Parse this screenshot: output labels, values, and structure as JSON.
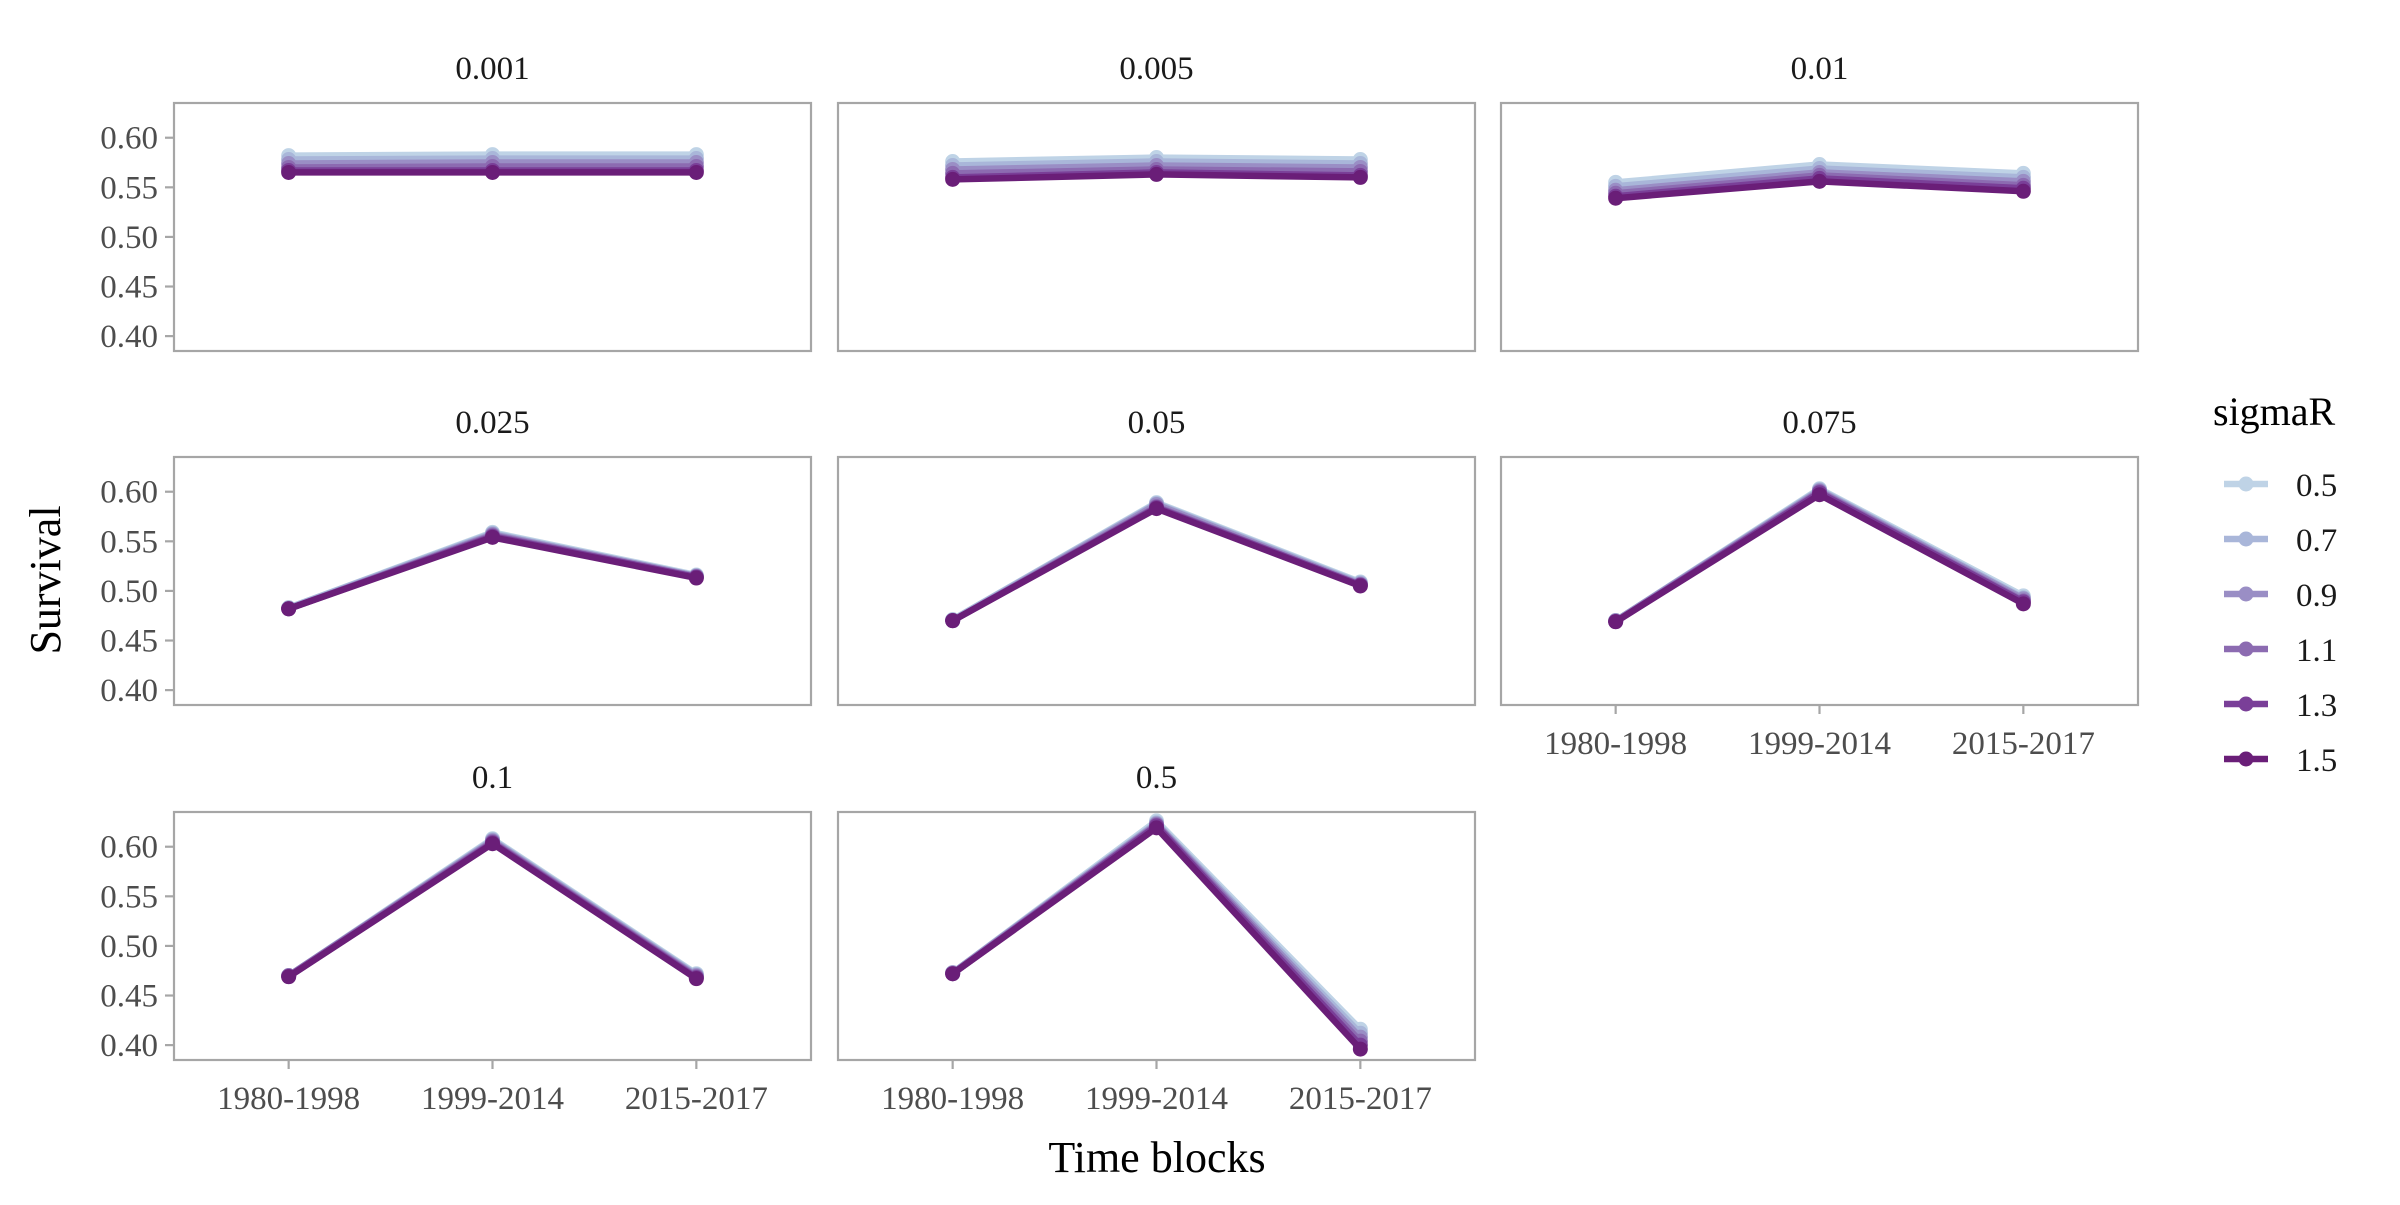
{
  "chart_data": {
    "type": "line",
    "facet_variable_values": [
      "0.001",
      "0.005",
      "0.01",
      "0.025",
      "0.05",
      "0.075",
      "0.1",
      "0.5"
    ],
    "categories": [
      "1980-1998",
      "1999-2014",
      "2015-2017"
    ],
    "xlabel": "Time blocks",
    "ylabel": "Survival",
    "ylim": [
      0.385,
      0.635
    ],
    "yticks": [
      0.4,
      0.45,
      0.5,
      0.55,
      0.6
    ],
    "ytick_labels": [
      "0.40",
      "0.45",
      "0.50",
      "0.55",
      "0.60"
    ],
    "grid": false,
    "legend": {
      "title": "sigmaR",
      "placement": "right",
      "entries": [
        "0.5",
        "0.7",
        "0.9",
        "1.1",
        "1.3",
        "1.5"
      ]
    },
    "series_colors": [
      "#bfd3e6",
      "#a9b6d9",
      "#9a8ec5",
      "#8c6bb1",
      "#7a3f98",
      "#6a1e78"
    ],
    "facets": [
      {
        "label": "0.001",
        "series": [
          {
            "name": "0.5",
            "values": [
              0.582,
              0.583,
              0.583
            ]
          },
          {
            "name": "0.7",
            "values": [
              0.578,
              0.579,
              0.579
            ]
          },
          {
            "name": "0.9",
            "values": [
              0.574,
              0.575,
              0.575
            ]
          },
          {
            "name": "1.1",
            "values": [
              0.57,
              0.571,
              0.571
            ]
          },
          {
            "name": "1.3",
            "values": [
              0.567,
              0.567,
              0.567
            ]
          },
          {
            "name": "1.5",
            "values": [
              0.565,
              0.565,
              0.565
            ]
          }
        ]
      },
      {
        "label": "0.005",
        "series": [
          {
            "name": "0.5",
            "values": [
              0.576,
              0.58,
              0.578
            ]
          },
          {
            "name": "0.7",
            "values": [
              0.572,
              0.576,
              0.574
            ]
          },
          {
            "name": "0.9",
            "values": [
              0.568,
              0.572,
              0.57
            ]
          },
          {
            "name": "1.1",
            "values": [
              0.564,
              0.568,
              0.566
            ]
          },
          {
            "name": "1.3",
            "values": [
              0.56,
              0.565,
              0.562
            ]
          },
          {
            "name": "1.5",
            "values": [
              0.558,
              0.563,
              0.56
            ]
          }
        ]
      },
      {
        "label": "0.01",
        "series": [
          {
            "name": "0.5",
            "values": [
              0.555,
              0.573,
              0.564
            ]
          },
          {
            "name": "0.7",
            "values": [
              0.551,
              0.569,
              0.56
            ]
          },
          {
            "name": "0.9",
            "values": [
              0.547,
              0.565,
              0.556
            ]
          },
          {
            "name": "1.1",
            "values": [
              0.544,
              0.562,
              0.552
            ]
          },
          {
            "name": "1.3",
            "values": [
              0.541,
              0.559,
              0.549
            ]
          },
          {
            "name": "1.5",
            "values": [
              0.539,
              0.556,
              0.546
            ]
          }
        ]
      },
      {
        "label": "0.025",
        "series": [
          {
            "name": "0.5",
            "values": [
              0.483,
              0.559,
              0.516
            ]
          },
          {
            "name": "0.7",
            "values": [
              0.483,
              0.558,
              0.515
            ]
          },
          {
            "name": "0.9",
            "values": [
              0.482,
              0.557,
              0.515
            ]
          },
          {
            "name": "1.1",
            "values": [
              0.482,
              0.556,
              0.514
            ]
          },
          {
            "name": "1.3",
            "values": [
              0.482,
              0.555,
              0.514
            ]
          },
          {
            "name": "1.5",
            "values": [
              0.482,
              0.554,
              0.513
            ]
          }
        ]
      },
      {
        "label": "0.05",
        "series": [
          {
            "name": "0.5",
            "values": [
              0.471,
              0.589,
              0.509
            ]
          },
          {
            "name": "0.7",
            "values": [
              0.471,
              0.588,
              0.508
            ]
          },
          {
            "name": "0.9",
            "values": [
              0.47,
              0.587,
              0.507
            ]
          },
          {
            "name": "1.1",
            "values": [
              0.47,
              0.585,
              0.506
            ]
          },
          {
            "name": "1.3",
            "values": [
              0.47,
              0.584,
              0.506
            ]
          },
          {
            "name": "1.5",
            "values": [
              0.47,
              0.583,
              0.505
            ]
          }
        ]
      },
      {
        "label": "0.075",
        "series": [
          {
            "name": "0.5",
            "values": [
              0.47,
              0.603,
              0.495
            ]
          },
          {
            "name": "0.7",
            "values": [
              0.47,
              0.602,
              0.493
            ]
          },
          {
            "name": "0.9",
            "values": [
              0.47,
              0.601,
              0.492
            ]
          },
          {
            "name": "1.1",
            "values": [
              0.469,
              0.6,
              0.49
            ]
          },
          {
            "name": "1.3",
            "values": [
              0.469,
              0.599,
              0.489
            ]
          },
          {
            "name": "1.5",
            "values": [
              0.469,
              0.597,
              0.487
            ]
          }
        ]
      },
      {
        "label": "0.1",
        "series": [
          {
            "name": "0.5",
            "values": [
              0.47,
              0.608,
              0.472
            ]
          },
          {
            "name": "0.7",
            "values": [
              0.47,
              0.607,
              0.471
            ]
          },
          {
            "name": "0.9",
            "values": [
              0.47,
              0.606,
              0.47
            ]
          },
          {
            "name": "1.1",
            "values": [
              0.47,
              0.605,
              0.469
            ]
          },
          {
            "name": "1.3",
            "values": [
              0.469,
              0.604,
              0.468
            ]
          },
          {
            "name": "1.5",
            "values": [
              0.469,
              0.603,
              0.467
            ]
          }
        ]
      },
      {
        "label": "0.5",
        "series": [
          {
            "name": "0.5",
            "values": [
              0.473,
              0.626,
              0.416
            ]
          },
          {
            "name": "0.7",
            "values": [
              0.473,
              0.624,
              0.412
            ]
          },
          {
            "name": "0.9",
            "values": [
              0.473,
              0.623,
              0.408
            ]
          },
          {
            "name": "1.1",
            "values": [
              0.472,
              0.622,
              0.404
            ]
          },
          {
            "name": "1.3",
            "values": [
              0.472,
              0.621,
              0.4
            ]
          },
          {
            "name": "1.5",
            "values": [
              0.472,
              0.619,
              0.396
            ]
          }
        ]
      }
    ]
  }
}
